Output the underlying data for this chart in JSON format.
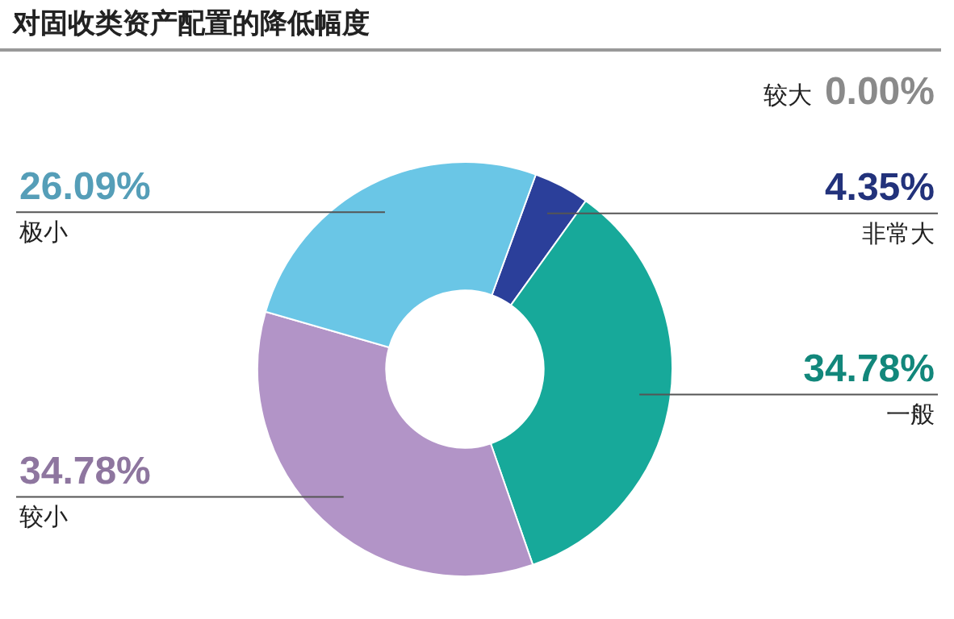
{
  "chart_data": {
    "type": "donut",
    "title": "对固收类资产配置的降低幅度",
    "categories": [
      "非常大",
      "一般",
      "较小",
      "极小",
      "较大"
    ],
    "values": [
      4.35,
      34.78,
      34.78,
      26.09,
      0.0
    ],
    "colors": [
      "#2b3f9a",
      "#17a99a",
      "#b294c7",
      "#6ac6e6",
      "#8a8a8a"
    ],
    "value_labels": [
      "4.35%",
      "34.78%",
      "34.78%",
      "26.09%",
      "0.00%"
    ],
    "legend": false
  }
}
